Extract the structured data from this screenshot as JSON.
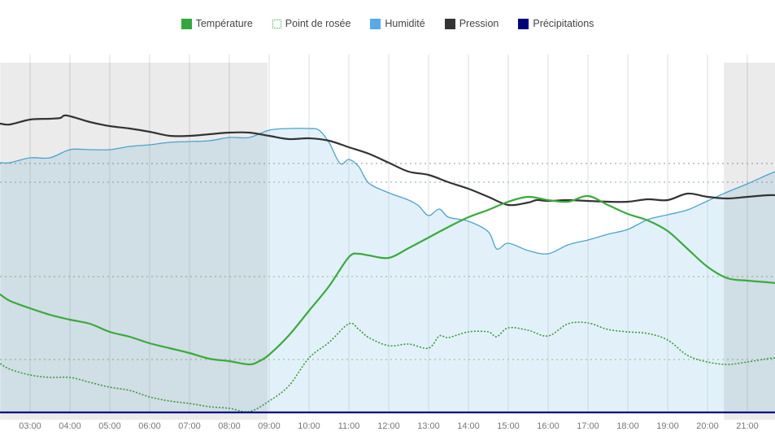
{
  "legend": [
    {
      "label": "Température",
      "color": "#2faa3a",
      "style": "solid"
    },
    {
      "label": "Point de rosée",
      "color": "#2faa3a",
      "style": "dotted"
    },
    {
      "label": "Humidité",
      "color": "#55aaee",
      "style": "solid"
    },
    {
      "label": "Pression",
      "color": "#333333",
      "style": "solid"
    },
    {
      "label": "Précipitations",
      "color": "#000080",
      "style": "solid"
    }
  ],
  "chart_data": {
    "type": "line",
    "title": "",
    "xlabel": "",
    "xlim_hours": [
      2.25,
      21.7
    ],
    "x_tick_labels": [
      "03:00",
      "04:00",
      "05:00",
      "06:00",
      "07:00",
      "08:00",
      "09:00",
      "10:00",
      "11:00",
      "12:00",
      "13:00",
      "14:00",
      "15:00",
      "16:00",
      "17:00",
      "18:00",
      "19:00",
      "20:00",
      "21:00"
    ],
    "x_tick_hours": [
      3,
      4,
      5,
      6,
      7,
      8,
      9,
      10,
      11,
      12,
      13,
      14,
      15,
      16,
      17,
      18,
      19,
      20,
      21
    ],
    "night_periods_hours": [
      [
        2.25,
        8.96
      ],
      [
        20.41,
        21.7
      ]
    ],
    "grid": {
      "vertical": true
    },
    "axes": {
      "temperature": {
        "unit": "°C",
        "ylim": [
          -2,
          20
        ]
      },
      "humidity": {
        "unit": "%",
        "ylim": [
          0,
          110
        ]
      },
      "pressure": {
        "unit": "hPa",
        "ylim": [
          1000,
          1022
        ]
      },
      "precipitation": {
        "unit": "mm",
        "ylim": [
          0,
          10
        ]
      }
    },
    "reference_lines": [
      {
        "axis": "humidity",
        "value": 76.5,
        "color": "#aaaaaa"
      },
      {
        "axis": "humidity",
        "value": 70.75,
        "color": "#9fb8c8"
      },
      {
        "axis": "temperature",
        "value": 6.35,
        "color": "#9fc49f"
      },
      {
        "axis": "temperature",
        "value": 1.25,
        "color": "#9fc49f"
      }
    ],
    "series": [
      {
        "name": "Humidité",
        "axis": "humidity",
        "color": "#4ba3cd",
        "fill": "rgba(160,210,235,0.30)",
        "points": [
          [
            2.25,
            76.75
          ],
          [
            2.5,
            76.75
          ],
          [
            3,
            78.25
          ],
          [
            3.5,
            78.25
          ],
          [
            4,
            80.75
          ],
          [
            4.5,
            80.75
          ],
          [
            5,
            80.75
          ],
          [
            5.5,
            81.75
          ],
          [
            6,
            82.25
          ],
          [
            6.5,
            83
          ],
          [
            7,
            83.25
          ],
          [
            7.5,
            83.5
          ],
          [
            8,
            84.5
          ],
          [
            8.5,
            84.5
          ],
          [
            9,
            86.75
          ],
          [
            9.5,
            87.25
          ],
          [
            10,
            87.25
          ],
          [
            10.25,
            86.75
          ],
          [
            10.5,
            83
          ],
          [
            10.78,
            76.5
          ],
          [
            11,
            77.75
          ],
          [
            11.25,
            75.5
          ],
          [
            11.5,
            70.5
          ],
          [
            12,
            67.5
          ],
          [
            12.5,
            65.25
          ],
          [
            12.75,
            63.5
          ],
          [
            13,
            60.5
          ],
          [
            13.27,
            62.5
          ],
          [
            13.5,
            60
          ],
          [
            14,
            58.75
          ],
          [
            14.5,
            55.5
          ],
          [
            14.71,
            50.25
          ],
          [
            15,
            52
          ],
          [
            15.5,
            49.75
          ],
          [
            16,
            48.75
          ],
          [
            16.5,
            51.5
          ],
          [
            17,
            53
          ],
          [
            17.5,
            54.75
          ],
          [
            18,
            56.25
          ],
          [
            18.5,
            59.25
          ],
          [
            19,
            60.75
          ],
          [
            19.5,
            62.25
          ],
          [
            20,
            65
          ],
          [
            20.5,
            67.75
          ],
          [
            21,
            70.25
          ],
          [
            21.5,
            73
          ],
          [
            21.7,
            74
          ]
        ]
      },
      {
        "name": "Pression",
        "axis": "pressure",
        "color": "#333333",
        "points": [
          [
            2.25,
            1017.75
          ],
          [
            2.5,
            1017.7
          ],
          [
            3,
            1018
          ],
          [
            3.5,
            1018.05
          ],
          [
            3.76,
            1018.1
          ],
          [
            3.92,
            1018.25
          ],
          [
            4.5,
            1017.85
          ],
          [
            5,
            1017.6
          ],
          [
            5.5,
            1017.45
          ],
          [
            6,
            1017.25
          ],
          [
            6.5,
            1017
          ],
          [
            7,
            1017
          ],
          [
            7.5,
            1017.1
          ],
          [
            8,
            1017.2
          ],
          [
            8.5,
            1017.2
          ],
          [
            9,
            1017
          ],
          [
            9.5,
            1016.8
          ],
          [
            10,
            1016.85
          ],
          [
            10.5,
            1016.7
          ],
          [
            11,
            1016.3
          ],
          [
            11.5,
            1015.9
          ],
          [
            12,
            1015.35
          ],
          [
            12.5,
            1014.8
          ],
          [
            13,
            1014.6
          ],
          [
            13.5,
            1014.15
          ],
          [
            14,
            1013.75
          ],
          [
            14.5,
            1013.25
          ],
          [
            15,
            1012.75
          ],
          [
            15.5,
            1012.9
          ],
          [
            15.71,
            1013.05
          ],
          [
            16,
            1013
          ],
          [
            16.5,
            1013.05
          ],
          [
            17,
            1013
          ],
          [
            17.5,
            1012.95
          ],
          [
            18,
            1012.95
          ],
          [
            18.5,
            1013.1
          ],
          [
            19,
            1013.05
          ],
          [
            19.5,
            1013.45
          ],
          [
            20,
            1013.25
          ],
          [
            20.5,
            1013.15
          ],
          [
            21,
            1013.25
          ],
          [
            21.5,
            1013.35
          ],
          [
            21.7,
            1013.35
          ]
        ]
      },
      {
        "name": "Température",
        "axis": "temperature",
        "color": "#3aaa3a",
        "points": [
          [
            2.25,
            5.25
          ],
          [
            2.5,
            4.85
          ],
          [
            3,
            4.4
          ],
          [
            3.5,
            4.0
          ],
          [
            4,
            3.7
          ],
          [
            4.5,
            3.45
          ],
          [
            5,
            2.95
          ],
          [
            5.5,
            2.65
          ],
          [
            6,
            2.25
          ],
          [
            6.5,
            1.95
          ],
          [
            7,
            1.65
          ],
          [
            7.5,
            1.3
          ],
          [
            8,
            1.15
          ],
          [
            8.5,
            0.95
          ],
          [
            8.75,
            1.15
          ],
          [
            9,
            1.55
          ],
          [
            9.5,
            2.75
          ],
          [
            10,
            4.25
          ],
          [
            10.5,
            5.75
          ],
          [
            11,
            7.55
          ],
          [
            11.25,
            7.75
          ],
          [
            11.5,
            7.65
          ],
          [
            12,
            7.5
          ],
          [
            12.5,
            8.1
          ],
          [
            13,
            8.75
          ],
          [
            13.5,
            9.4
          ],
          [
            14,
            10.0
          ],
          [
            14.5,
            10.45
          ],
          [
            15,
            10.95
          ],
          [
            15.5,
            11.25
          ],
          [
            16,
            11.05
          ],
          [
            16.5,
            10.95
          ],
          [
            17,
            11.3
          ],
          [
            17.5,
            10.75
          ],
          [
            18,
            10.2
          ],
          [
            18.5,
            9.8
          ],
          [
            19,
            9.15
          ],
          [
            19.5,
            8.05
          ],
          [
            20,
            6.95
          ],
          [
            20.5,
            6.25
          ],
          [
            21,
            6.1
          ],
          [
            21.5,
            6.0
          ],
          [
            21.7,
            5.95
          ]
        ]
      },
      {
        "name": "Point de rosée",
        "axis": "temperature",
        "color": "#3a9a3a",
        "dotted": true,
        "points": [
          [
            2.25,
            1.0
          ],
          [
            2.5,
            0.65
          ],
          [
            3,
            0.3
          ],
          [
            3.5,
            0.15
          ],
          [
            4,
            0.15
          ],
          [
            4.5,
            -0.15
          ],
          [
            5,
            -0.45
          ],
          [
            5.5,
            -0.65
          ],
          [
            6,
            -1.05
          ],
          [
            6.5,
            -1.3
          ],
          [
            7,
            -1.45
          ],
          [
            7.5,
            -1.65
          ],
          [
            8,
            -1.75
          ],
          [
            8.5,
            -1.95
          ],
          [
            9,
            -1.3
          ],
          [
            9.5,
            -0.35
          ],
          [
            10,
            1.35
          ],
          [
            10.5,
            2.3
          ],
          [
            11,
            3.45
          ],
          [
            11.25,
            3.1
          ],
          [
            11.5,
            2.6
          ],
          [
            12,
            2.1
          ],
          [
            12.5,
            2.2
          ],
          [
            13,
            1.95
          ],
          [
            13.27,
            2.7
          ],
          [
            13.5,
            2.6
          ],
          [
            14,
            2.95
          ],
          [
            14.5,
            2.95
          ],
          [
            14.71,
            2.65
          ],
          [
            15,
            3.2
          ],
          [
            15.5,
            3.05
          ],
          [
            16,
            2.7
          ],
          [
            16.5,
            3.45
          ],
          [
            17,
            3.5
          ],
          [
            17.5,
            3.1
          ],
          [
            18,
            2.95
          ],
          [
            18.5,
            2.85
          ],
          [
            19,
            2.45
          ],
          [
            19.5,
            1.5
          ],
          [
            20,
            1.1
          ],
          [
            20.5,
            0.95
          ],
          [
            21,
            1.1
          ],
          [
            21.5,
            1.3
          ],
          [
            21.7,
            1.35
          ]
        ]
      },
      {
        "name": "Précipitations",
        "axis": "precipitation",
        "color": "#000080",
        "points": [
          [
            2.25,
            0
          ],
          [
            21.7,
            0
          ]
        ]
      }
    ]
  }
}
